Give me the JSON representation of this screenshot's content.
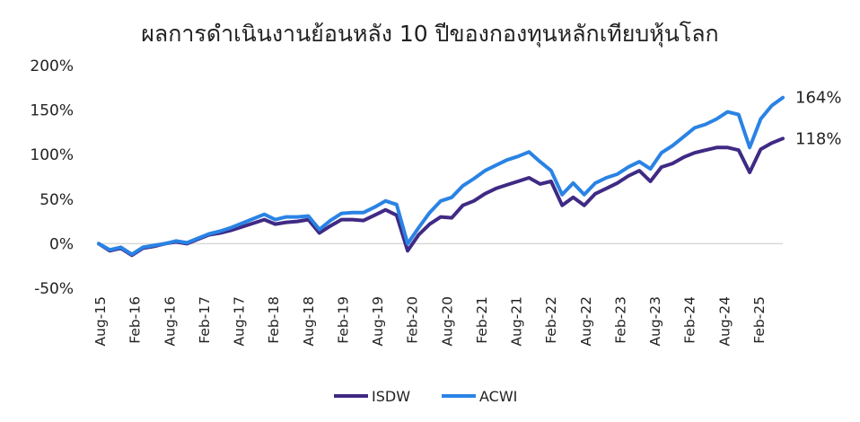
{
  "chart_data": {
    "type": "line",
    "title": "ผลการดำเนินงานย้อนหลัง 10 ปีของกองทุนหลักเทียบหุ้นโลก",
    "xlabel": "",
    "ylabel": "",
    "ylim": [
      -0.5,
      2.0
    ],
    "y_ticks": [
      {
        "value": 2.0,
        "label": "200%"
      },
      {
        "value": 1.5,
        "label": "150%"
      },
      {
        "value": 1.0,
        "label": "100%"
      },
      {
        "value": 0.5,
        "label": "50%"
      },
      {
        "value": 0.0,
        "label": "0%"
      },
      {
        "value": -0.5,
        "label": "-50%"
      }
    ],
    "x_tick_labels": [
      "Aug-15",
      "Feb-16",
      "Aug-16",
      "Feb-17",
      "Aug-17",
      "Feb-18",
      "Aug-18",
      "Feb-19",
      "Aug-19",
      "Feb-20",
      "Aug-20",
      "Feb-21",
      "Aug-21",
      "Feb-22",
      "Aug-22",
      "Feb-23",
      "Aug-23",
      "Feb-24",
      "Aug-24",
      "Feb-25"
    ],
    "x": [
      "Aug-15",
      "Oct-15",
      "Dec-15",
      "Feb-16",
      "Apr-16",
      "Jun-16",
      "Aug-16",
      "Oct-16",
      "Dec-16",
      "Feb-17",
      "Apr-17",
      "Jun-17",
      "Aug-17",
      "Oct-17",
      "Dec-17",
      "Feb-18",
      "Apr-18",
      "Jun-18",
      "Aug-18",
      "Oct-18",
      "Dec-18",
      "Feb-19",
      "Apr-19",
      "Jun-19",
      "Aug-19",
      "Oct-19",
      "Dec-19",
      "Feb-20",
      "Mar-20",
      "Apr-20",
      "Jun-20",
      "Aug-20",
      "Oct-20",
      "Dec-20",
      "Feb-21",
      "Apr-21",
      "Jun-21",
      "Aug-21",
      "Oct-21",
      "Dec-21",
      "Feb-22",
      "Apr-22",
      "Jun-22",
      "Aug-22",
      "Oct-22",
      "Dec-22",
      "Feb-23",
      "Apr-23",
      "Jun-23",
      "Aug-23",
      "Oct-23",
      "Dec-23",
      "Feb-24",
      "Apr-24",
      "Jun-24",
      "Aug-24",
      "Oct-24",
      "Dec-24",
      "Feb-25",
      "Apr-25",
      "Jun-25",
      "Aug-25",
      "Sep-25"
    ],
    "series": [
      {
        "name": "ISDW",
        "color": "#3f2a84",
        "end_label": "118%",
        "values": [
          0.0,
          -0.08,
          -0.05,
          -0.13,
          -0.05,
          -0.03,
          0.0,
          0.02,
          0.0,
          0.05,
          0.1,
          0.12,
          0.15,
          0.19,
          0.23,
          0.27,
          0.22,
          0.24,
          0.25,
          0.27,
          0.12,
          0.2,
          0.27,
          0.27,
          0.26,
          0.32,
          0.38,
          0.32,
          -0.08,
          0.1,
          0.22,
          0.3,
          0.29,
          0.43,
          0.48,
          0.56,
          0.62,
          0.66,
          0.7,
          0.74,
          0.67,
          0.7,
          0.43,
          0.52,
          0.43,
          0.56,
          0.62,
          0.68,
          0.76,
          0.82,
          0.7,
          0.86,
          0.9,
          0.97,
          1.02,
          1.05,
          1.08,
          1.08,
          1.05,
          0.8,
          1.06,
          1.13,
          1.18
        ]
      },
      {
        "name": "ACWI",
        "color": "#2a83e4",
        "end_label": "164%",
        "values": [
          0.0,
          -0.07,
          -0.04,
          -0.12,
          -0.04,
          -0.02,
          0.0,
          0.03,
          0.01,
          0.06,
          0.11,
          0.14,
          0.18,
          0.23,
          0.28,
          0.33,
          0.27,
          0.3,
          0.3,
          0.31,
          0.16,
          0.26,
          0.34,
          0.35,
          0.35,
          0.41,
          0.48,
          0.44,
          0.0,
          0.18,
          0.35,
          0.48,
          0.52,
          0.65,
          0.73,
          0.82,
          0.88,
          0.94,
          0.98,
          1.03,
          0.92,
          0.82,
          0.55,
          0.68,
          0.55,
          0.68,
          0.74,
          0.78,
          0.86,
          0.92,
          0.84,
          1.02,
          1.1,
          1.2,
          1.3,
          1.34,
          1.4,
          1.48,
          1.45,
          1.08,
          1.4,
          1.55,
          1.64
        ]
      }
    ],
    "legend_position": "bottom-center",
    "grid": false
  }
}
